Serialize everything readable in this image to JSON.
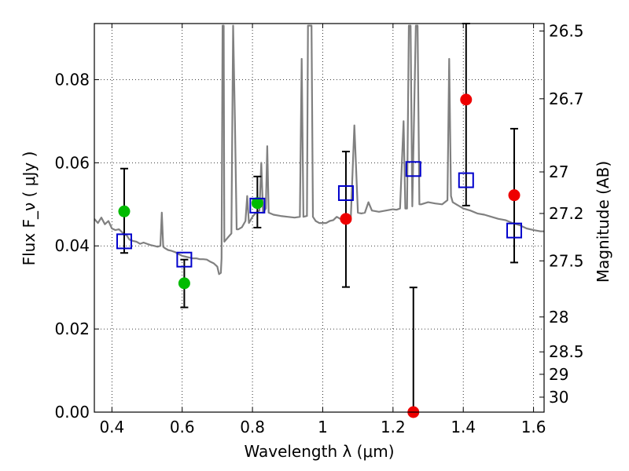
{
  "chart_data": {
    "type": "scatter",
    "title": "",
    "xlabel": "Wavelength  λ (μm)",
    "ylabel": "Flux  F_ν  ( μJy )",
    "ylabel_right": "Magnitude (AB)",
    "xlim": [
      0.35,
      1.63
    ],
    "ylim": [
      0.0,
      0.0935
    ],
    "grid": true,
    "x_ticks": [
      0.4,
      0.6,
      0.8,
      1.0,
      1.2,
      1.4,
      1.6
    ],
    "x_tick_labels": [
      "0.4",
      "0.6",
      "0.8",
      "1",
      "1.2",
      "1.4",
      "1.6"
    ],
    "y_ticks": [
      0.0,
      0.02,
      0.04,
      0.06,
      0.08
    ],
    "y_tick_labels": [
      "0.00",
      "0.02",
      "0.04",
      "0.06",
      "0.08"
    ],
    "right_ticks": [
      {
        "label": "26.5",
        "flux": 0.0917
      },
      {
        "label": "26.7",
        "flux": 0.0754
      },
      {
        "label": "27",
        "flux": 0.0578
      },
      {
        "label": "27.2",
        "flux": 0.0478
      },
      {
        "label": "27.5",
        "flux": 0.0364
      },
      {
        "label": "28",
        "flux": 0.0229
      },
      {
        "label": "28.5",
        "flux": 0.0145
      },
      {
        "label": "29",
        "flux": 0.0091
      },
      {
        "label": "30",
        "flux": 0.0036
      }
    ],
    "colors": {
      "template": "#808080",
      "model_squares": "#0000cc",
      "green_points": "#00bb00",
      "red_points": "#ee0000",
      "errorbar": "#000000",
      "grid": "#000000"
    },
    "series": [
      {
        "marker": "circle-green",
        "points": [
          {
            "x": 0.435,
            "y": 0.0483
          },
          {
            "x": 0.606,
            "y": 0.031
          },
          {
            "x": 0.814,
            "y": 0.0503
          }
        ]
      },
      {
        "marker": "circle-red",
        "points": [
          {
            "x": 1.066,
            "y": 0.0465
          },
          {
            "x": 1.258,
            "y": 0.0
          },
          {
            "x": 1.408,
            "y": 0.0752
          },
          {
            "x": 1.545,
            "y": 0.0522
          }
        ]
      },
      {
        "marker": "square-open-blue",
        "points": [
          {
            "x": 0.435,
            "y": 0.0411
          },
          {
            "x": 0.606,
            "y": 0.0367
          },
          {
            "x": 0.814,
            "y": 0.0497
          },
          {
            "x": 1.066,
            "y": 0.0527
          },
          {
            "x": 1.258,
            "y": 0.0585
          },
          {
            "x": 1.408,
            "y": 0.0558
          },
          {
            "x": 1.545,
            "y": 0.0437
          }
        ]
      }
    ],
    "errorbars": [
      {
        "x": 0.435,
        "low": 0.0383,
        "high": 0.0586
      },
      {
        "x": 0.606,
        "low": 0.0252,
        "high": 0.0367
      },
      {
        "x": 0.814,
        "low": 0.0444,
        "high": 0.0567
      },
      {
        "x": 1.066,
        "low": 0.0301,
        "high": 0.0627
      },
      {
        "x": 1.258,
        "low": 0.0,
        "high": 0.03
      },
      {
        "x": 1.408,
        "low": 0.0497,
        "high": 0.0935
      },
      {
        "x": 1.545,
        "low": 0.036,
        "high": 0.0682
      }
    ],
    "template_spectrum": [
      [
        0.35,
        0.0465
      ],
      [
        0.36,
        0.0455
      ],
      [
        0.37,
        0.0468
      ],
      [
        0.38,
        0.0452
      ],
      [
        0.39,
        0.046
      ],
      [
        0.4,
        0.0442
      ],
      [
        0.41,
        0.0438
      ],
      [
        0.42,
        0.044
      ],
      [
        0.43,
        0.0432
      ],
      [
        0.435,
        0.0425
      ],
      [
        0.44,
        0.0428
      ],
      [
        0.45,
        0.0415
      ],
      [
        0.46,
        0.0412
      ],
      [
        0.47,
        0.041
      ],
      [
        0.48,
        0.0405
      ],
      [
        0.49,
        0.0408
      ],
      [
        0.5,
        0.0405
      ],
      [
        0.51,
        0.0402
      ],
      [
        0.52,
        0.04
      ],
      [
        0.53,
        0.0398
      ],
      [
        0.538,
        0.04
      ],
      [
        0.542,
        0.048
      ],
      [
        0.546,
        0.0398
      ],
      [
        0.55,
        0.0395
      ],
      [
        0.56,
        0.039
      ],
      [
        0.57,
        0.0388
      ],
      [
        0.58,
        0.0385
      ],
      [
        0.59,
        0.038
      ],
      [
        0.6,
        0.0376
      ],
      [
        0.61,
        0.0374
      ],
      [
        0.62,
        0.0372
      ],
      [
        0.63,
        0.037
      ],
      [
        0.64,
        0.037
      ],
      [
        0.65,
        0.0368
      ],
      [
        0.66,
        0.0368
      ],
      [
        0.67,
        0.0367
      ],
      [
        0.68,
        0.0362
      ],
      [
        0.69,
        0.0358
      ],
      [
        0.7,
        0.035
      ],
      [
        0.705,
        0.0332
      ],
      [
        0.71,
        0.0335
      ],
      [
        0.712,
        0.037
      ],
      [
        0.715,
        0.093
      ],
      [
        0.718,
        0.093
      ],
      [
        0.72,
        0.041
      ],
      [
        0.73,
        0.042
      ],
      [
        0.74,
        0.043
      ],
      [
        0.745,
        0.093
      ],
      [
        0.75,
        0.07
      ],
      [
        0.755,
        0.044
      ],
      [
        0.76,
        0.044
      ],
      [
        0.77,
        0.0445
      ],
      [
        0.78,
        0.046
      ],
      [
        0.785,
        0.052
      ],
      [
        0.79,
        0.0455
      ],
      [
        0.8,
        0.047
      ],
      [
        0.81,
        0.048
      ],
      [
        0.82,
        0.0485
      ],
      [
        0.825,
        0.06
      ],
      [
        0.83,
        0.048
      ],
      [
        0.838,
        0.049
      ],
      [
        0.842,
        0.064
      ],
      [
        0.846,
        0.048
      ],
      [
        0.86,
        0.0475
      ],
      [
        0.88,
        0.0472
      ],
      [
        0.9,
        0.047
      ],
      [
        0.92,
        0.0468
      ],
      [
        0.935,
        0.047
      ],
      [
        0.94,
        0.085
      ],
      [
        0.945,
        0.047
      ],
      [
        0.955,
        0.0472
      ],
      [
        0.958,
        0.093
      ],
      [
        0.963,
        0.093
      ],
      [
        0.968,
        0.093
      ],
      [
        0.972,
        0.047
      ],
      [
        0.98,
        0.046
      ],
      [
        0.99,
        0.0455
      ],
      [
        1.0,
        0.0455
      ],
      [
        1.01,
        0.0455
      ],
      [
        1.02,
        0.046
      ],
      [
        1.03,
        0.0462
      ],
      [
        1.04,
        0.047
      ],
      [
        1.05,
        0.0465
      ],
      [
        1.06,
        0.0468
      ],
      [
        1.07,
        0.047
      ],
      [
        1.08,
        0.0468
      ],
      [
        1.09,
        0.069
      ],
      [
        1.1,
        0.048
      ],
      [
        1.11,
        0.0478
      ],
      [
        1.12,
        0.048
      ],
      [
        1.13,
        0.0505
      ],
      [
        1.14,
        0.0485
      ],
      [
        1.16,
        0.0482
      ],
      [
        1.18,
        0.0485
      ],
      [
        1.2,
        0.0488
      ],
      [
        1.21,
        0.0487
      ],
      [
        1.22,
        0.049
      ],
      [
        1.23,
        0.07
      ],
      [
        1.235,
        0.049
      ],
      [
        1.24,
        0.049
      ],
      [
        1.245,
        0.093
      ],
      [
        1.25,
        0.093
      ],
      [
        1.255,
        0.0495
      ],
      [
        1.265,
        0.093
      ],
      [
        1.27,
        0.093
      ],
      [
        1.275,
        0.05
      ],
      [
        1.28,
        0.05
      ],
      [
        1.3,
        0.0505
      ],
      [
        1.32,
        0.0502
      ],
      [
        1.34,
        0.05
      ],
      [
        1.355,
        0.051
      ],
      [
        1.36,
        0.085
      ],
      [
        1.365,
        0.052
      ],
      [
        1.37,
        0.0505
      ],
      [
        1.38,
        0.05
      ],
      [
        1.39,
        0.0495
      ],
      [
        1.4,
        0.049
      ],
      [
        1.42,
        0.0485
      ],
      [
        1.44,
        0.0478
      ],
      [
        1.46,
        0.0475
      ],
      [
        1.48,
        0.047
      ],
      [
        1.5,
        0.0465
      ],
      [
        1.52,
        0.0462
      ],
      [
        1.54,
        0.0455
      ],
      [
        1.56,
        0.045
      ],
      [
        1.58,
        0.0442
      ],
      [
        1.6,
        0.0438
      ],
      [
        1.62,
        0.0435
      ],
      [
        1.63,
        0.0435
      ]
    ]
  }
}
